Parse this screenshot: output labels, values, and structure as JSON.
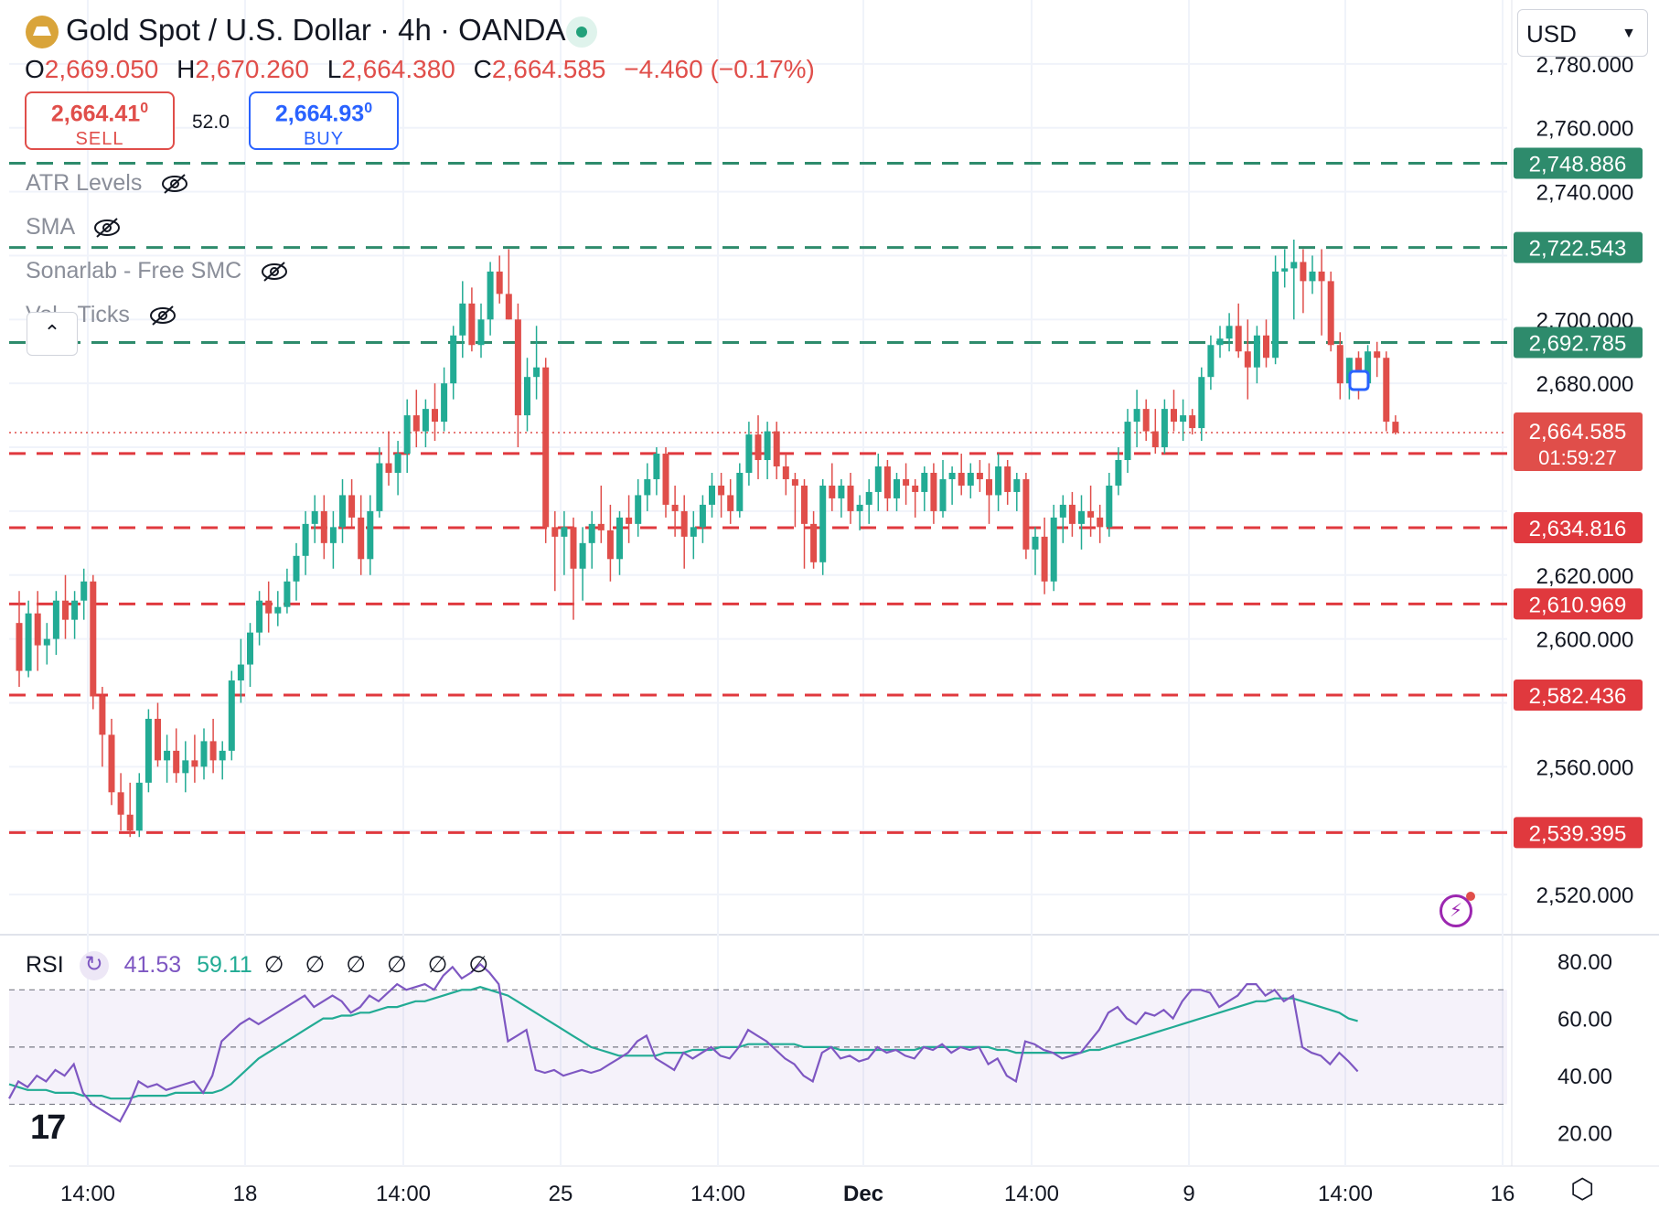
{
  "header": {
    "title": "Gold Spot / U.S. Dollar · 4h · OANDA",
    "ohlc": {
      "o_label": "O",
      "o": "2,669.050",
      "h_label": "H",
      "h": "2,670.260",
      "l_label": "L",
      "l": "2,664.380",
      "c_label": "C",
      "c": "2,664.585",
      "change": "−4.460 (−0.17%)"
    },
    "sell": {
      "price": "2,664.41",
      "pip": "0",
      "label": "SELL"
    },
    "buy": {
      "price": "2,664.93",
      "pip": "0",
      "label": "BUY"
    },
    "spread": "52.0",
    "currency": "USD"
  },
  "indicators": [
    {
      "label": "ATR Levels"
    },
    {
      "label": "SMA"
    },
    {
      "label": "Sonarlab - Free SMC"
    },
    {
      "label": "Vol · Ticks"
    }
  ],
  "rsi": {
    "label": "RSI",
    "value": "41.53",
    "ma_value": "59.11",
    "placeholders": "∅ ∅ ∅ ∅ ∅ ∅"
  },
  "colors": {
    "up": "#22ab94",
    "down": "#e04e4a",
    "green_level": "#2e8b6c",
    "red_level": "#e0393e",
    "rsi": "#7e57c2",
    "rsi_ma": "#22ab94"
  },
  "chart_data": [
    {
      "type": "candlestick",
      "title": "Gold Spot / U.S. Dollar · 4h · OANDA",
      "x_ticks": [
        "14:00",
        "18",
        "14:00",
        "25",
        "14:00",
        "Dec",
        "14:00",
        "9",
        "14:00",
        "16"
      ],
      "y_ticks": [
        "2,520.000",
        "2,560.000",
        "2,600.000",
        "2,620.000",
        "2,680.000",
        "2,700.000",
        "2,740.000",
        "2,760.000",
        "2,780.000"
      ],
      "ylim": [
        2508,
        2800
      ],
      "last_price": "2,664.585",
      "countdown": "01:59:27",
      "levels_green": [
        2748.886,
        2722.543,
        2692.785
      ],
      "levels_green_labels": [
        "2,748.886",
        "2,722.543",
        "2,692.785"
      ],
      "levels_red": [
        2658.034,
        2634.816,
        2610.969,
        2582.436,
        2539.395
      ],
      "levels_red_labels": [
        "2,658.034",
        "2,634.816",
        "2,610.969",
        "2,582.436",
        "2,539.395"
      ],
      "candles": [
        [
          2605,
          2615,
          2585,
          2590
        ],
        [
          2590,
          2612,
          2588,
          2608
        ],
        [
          2608,
          2615,
          2590,
          2598
        ],
        [
          2598,
          2605,
          2592,
          2600
        ],
        [
          2600,
          2615,
          2595,
          2612
        ],
        [
          2612,
          2620,
          2600,
          2606
        ],
        [
          2606,
          2615,
          2600,
          2612
        ],
        [
          2612,
          2622,
          2606,
          2618
        ],
        [
          2618,
          2620,
          2578,
          2582
        ],
        [
          2582,
          2585,
          2560,
          2570
        ],
        [
          2570,
          2575,
          2548,
          2552
        ],
        [
          2552,
          2558,
          2540,
          2545
        ],
        [
          2545,
          2555,
          2538,
          2540
        ],
        [
          2540,
          2558,
          2538,
          2555
        ],
        [
          2555,
          2578,
          2552,
          2575
        ],
        [
          2575,
          2580,
          2560,
          2562
        ],
        [
          2562,
          2570,
          2555,
          2565
        ],
        [
          2565,
          2572,
          2555,
          2558
        ],
        [
          2558,
          2568,
          2552,
          2562
        ],
        [
          2562,
          2570,
          2555,
          2560
        ],
        [
          2560,
          2572,
          2556,
          2568
        ],
        [
          2568,
          2575,
          2558,
          2562
        ],
        [
          2562,
          2568,
          2556,
          2565
        ],
        [
          2565,
          2590,
          2562,
          2587
        ],
        [
          2587,
          2600,
          2580,
          2592
        ],
        [
          2592,
          2605,
          2585,
          2602
        ],
        [
          2602,
          2615,
          2598,
          2612
        ],
        [
          2612,
          2618,
          2602,
          2608
        ],
        [
          2608,
          2615,
          2604,
          2610
        ],
        [
          2610,
          2622,
          2608,
          2618
        ],
        [
          2618,
          2630,
          2612,
          2626
        ],
        [
          2626,
          2640,
          2620,
          2636
        ],
        [
          2636,
          2645,
          2630,
          2640
        ],
        [
          2640,
          2645,
          2625,
          2630
        ],
        [
          2630,
          2640,
          2622,
          2635
        ],
        [
          2635,
          2650,
          2630,
          2645
        ],
        [
          2645,
          2650,
          2635,
          2638
        ],
        [
          2638,
          2645,
          2620,
          2625
        ],
        [
          2625,
          2645,
          2620,
          2640
        ],
        [
          2640,
          2660,
          2638,
          2655
        ],
        [
          2655,
          2665,
          2648,
          2652
        ],
        [
          2652,
          2662,
          2645,
          2658
        ],
        [
          2658,
          2675,
          2652,
          2670
        ],
        [
          2670,
          2678,
          2660,
          2665
        ],
        [
          2665,
          2675,
          2660,
          2672
        ],
        [
          2672,
          2680,
          2662,
          2668
        ],
        [
          2668,
          2685,
          2665,
          2680
        ],
        [
          2680,
          2698,
          2675,
          2695
        ],
        [
          2695,
          2712,
          2688,
          2705
        ],
        [
          2705,
          2710,
          2690,
          2692
        ],
        [
          2692,
          2705,
          2688,
          2700
        ],
        [
          2700,
          2718,
          2695,
          2715
        ],
        [
          2715,
          2720,
          2705,
          2708
        ],
        [
          2708,
          2722,
          2700,
          2700
        ],
        [
          2700,
          2705,
          2660,
          2670
        ],
        [
          2670,
          2688,
          2665,
          2682
        ],
        [
          2682,
          2698,
          2675,
          2685
        ],
        [
          2685,
          2688,
          2630,
          2635
        ],
        [
          2635,
          2640,
          2615,
          2632
        ],
        [
          2632,
          2640,
          2620,
          2635
        ],
        [
          2635,
          2638,
          2606,
          2622
        ],
        [
          2622,
          2635,
          2612,
          2630
        ],
        [
          2630,
          2640,
          2622,
          2636
        ],
        [
          2636,
          2648,
          2630,
          2634
        ],
        [
          2634,
          2642,
          2618,
          2625
        ],
        [
          2625,
          2640,
          2620,
          2638
        ],
        [
          2638,
          2645,
          2630,
          2636
        ],
        [
          2636,
          2650,
          2632,
          2645
        ],
        [
          2645,
          2655,
          2640,
          2650
        ],
        [
          2650,
          2660,
          2645,
          2658
        ],
        [
          2658,
          2660,
          2638,
          2642
        ],
        [
          2642,
          2648,
          2632,
          2640
        ],
        [
          2640,
          2645,
          2622,
          2632
        ],
        [
          2632,
          2640,
          2625,
          2635
        ],
        [
          2635,
          2645,
          2630,
          2642
        ],
        [
          2642,
          2652,
          2638,
          2648
        ],
        [
          2648,
          2652,
          2638,
          2645
        ],
        [
          2645,
          2650,
          2636,
          2640
        ],
        [
          2640,
          2655,
          2638,
          2652
        ],
        [
          2652,
          2668,
          2648,
          2664
        ],
        [
          2664,
          2670,
          2650,
          2656
        ],
        [
          2656,
          2668,
          2650,
          2665
        ],
        [
          2665,
          2668,
          2650,
          2654
        ],
        [
          2654,
          2658,
          2645,
          2650
        ],
        [
          2650,
          2652,
          2635,
          2648
        ],
        [
          2648,
          2650,
          2622,
          2636
        ],
        [
          2636,
          2640,
          2622,
          2624
        ],
        [
          2624,
          2650,
          2620,
          2648
        ],
        [
          2648,
          2655,
          2640,
          2644
        ],
        [
          2644,
          2650,
          2638,
          2648
        ],
        [
          2648,
          2652,
          2636,
          2640
        ],
        [
          2640,
          2645,
          2634,
          2642
        ],
        [
          2642,
          2650,
          2636,
          2646
        ],
        [
          2646,
          2658,
          2640,
          2654
        ],
        [
          2654,
          2656,
          2640,
          2644
        ],
        [
          2644,
          2652,
          2640,
          2650
        ],
        [
          2650,
          2655,
          2642,
          2648
        ],
        [
          2648,
          2650,
          2638,
          2646
        ],
        [
          2646,
          2654,
          2640,
          2652
        ],
        [
          2652,
          2655,
          2636,
          2640
        ],
        [
          2640,
          2656,
          2638,
          2650
        ],
        [
          2650,
          2654,
          2642,
          2652
        ],
        [
          2652,
          2658,
          2645,
          2648
        ],
        [
          2648,
          2655,
          2644,
          2652
        ],
        [
          2652,
          2656,
          2646,
          2650
        ],
        [
          2650,
          2655,
          2636,
          2645
        ],
        [
          2645,
          2658,
          2640,
          2654
        ],
        [
          2654,
          2656,
          2642,
          2646
        ],
        [
          2646,
          2652,
          2640,
          2650
        ],
        [
          2650,
          2652,
          2625,
          2628
        ],
        [
          2628,
          2635,
          2620,
          2632
        ],
        [
          2632,
          2638,
          2614,
          2618
        ],
        [
          2618,
          2642,
          2615,
          2638
        ],
        [
          2638,
          2645,
          2630,
          2642
        ],
        [
          2642,
          2646,
          2632,
          2636
        ],
        [
          2636,
          2645,
          2628,
          2640
        ],
        [
          2640,
          2648,
          2632,
          2638
        ],
        [
          2638,
          2642,
          2630,
          2635
        ],
        [
          2635,
          2652,
          2632,
          2648
        ],
        [
          2648,
          2660,
          2645,
          2656
        ],
        [
          2656,
          2672,
          2652,
          2668
        ],
        [
          2668,
          2678,
          2660,
          2672
        ],
        [
          2672,
          2675,
          2662,
          2665
        ],
        [
          2665,
          2672,
          2658,
          2660
        ],
        [
          2660,
          2675,
          2658,
          2672
        ],
        [
          2672,
          2678,
          2665,
          2668
        ],
        [
          2668,
          2675,
          2662,
          2670
        ],
        [
          2670,
          2672,
          2664,
          2666
        ],
        [
          2666,
          2685,
          2662,
          2682
        ],
        [
          2682,
          2695,
          2678,
          2692
        ],
        [
          2692,
          2698,
          2688,
          2694
        ],
        [
          2694,
          2702,
          2690,
          2698
        ],
        [
          2698,
          2705,
          2688,
          2690
        ],
        [
          2690,
          2700,
          2675,
          2685
        ],
        [
          2685,
          2698,
          2680,
          2695
        ],
        [
          2695,
          2700,
          2685,
          2688
        ],
        [
          2688,
          2720,
          2686,
          2715
        ],
        [
          2715,
          2722,
          2710,
          2716
        ],
        [
          2716,
          2725,
          2700,
          2718
        ],
        [
          2718,
          2722,
          2702,
          2712
        ],
        [
          2712,
          2720,
          2708,
          2715
        ],
        [
          2715,
          2722,
          2695,
          2712
        ],
        [
          2712,
          2715,
          2690,
          2692
        ],
        [
          2692,
          2696,
          2675,
          2680
        ],
        [
          2680,
          2688,
          2675,
          2688
        ],
        [
          2688,
          2690,
          2675,
          2680
        ],
        [
          2680,
          2692,
          2678,
          2690
        ],
        [
          2690,
          2693,
          2682,
          2688
        ],
        [
          2688,
          2690,
          2665,
          2668
        ],
        [
          2668,
          2670,
          2664,
          2664.6
        ]
      ],
      "rsi": {
        "ylim": [
          10,
          88
        ],
        "y_ticks": [
          "20.00",
          "40.00",
          "60.00",
          "80.00"
        ],
        "bands": [
          30,
          50,
          70
        ],
        "values": [
          32,
          38,
          36,
          40,
          38,
          42,
          40,
          44,
          34,
          30,
          28,
          26,
          24,
          30,
          38,
          36,
          37,
          35,
          36,
          37,
          38,
          34,
          40,
          52,
          55,
          58,
          60,
          58,
          60,
          62,
          64,
          66,
          68,
          64,
          66,
          68,
          66,
          62,
          64,
          68,
          66,
          69,
          72,
          70,
          71,
          72,
          70,
          75,
          78,
          74,
          76,
          79,
          76,
          72,
          52,
          54,
          56,
          42,
          41,
          42,
          40,
          41,
          42,
          41,
          42,
          44,
          46,
          48,
          52,
          54,
          46,
          44,
          42,
          48,
          46,
          48,
          50,
          47,
          46,
          50,
          56,
          54,
          52,
          49,
          46,
          44,
          40,
          38,
          48,
          50,
          46,
          47,
          45,
          46,
          50,
          48,
          49,
          47,
          46,
          50,
          49,
          51,
          48,
          50,
          49,
          50,
          44,
          46,
          40,
          38,
          52,
          51,
          49,
          48,
          46,
          47,
          48,
          52,
          56,
          62,
          64,
          60,
          58,
          62,
          61,
          63,
          60,
          66,
          70,
          70,
          69,
          64,
          66,
          68,
          72,
          72,
          68,
          70,
          66,
          68,
          50,
          48,
          47,
          44,
          48,
          45,
          41.5
        ],
        "ma_values": [
          37,
          36,
          35,
          35,
          35,
          34,
          34,
          34,
          33,
          33,
          33,
          32,
          32,
          32,
          33,
          33,
          33,
          33,
          34,
          34,
          34,
          34,
          34,
          35,
          37,
          40,
          43,
          46,
          48,
          50,
          52,
          54,
          56,
          58,
          60,
          60,
          61,
          61,
          62,
          62,
          63,
          64,
          64,
          65,
          66,
          66,
          67,
          68,
          69,
          70,
          70,
          71,
          70,
          69,
          68,
          66,
          64,
          62,
          60,
          58,
          56,
          54,
          52,
          50,
          49,
          48,
          47,
          47,
          47,
          47,
          47,
          48,
          48,
          48,
          49,
          49,
          49,
          50,
          50,
          50,
          51,
          51,
          51,
          51,
          51,
          51,
          50,
          50,
          50,
          50,
          49,
          49,
          49,
          49,
          49,
          49,
          49,
          49,
          49,
          50,
          50,
          50,
          50,
          50,
          50,
          50,
          50,
          49,
          49,
          48,
          48,
          48,
          48,
          48,
          48,
          48,
          48,
          49,
          49,
          50,
          51,
          52,
          53,
          54,
          55,
          56,
          57,
          58,
          59,
          60,
          61,
          62,
          63,
          64,
          65,
          66,
          66,
          67,
          67,
          67,
          66,
          65,
          64,
          63,
          62,
          60,
          59.1
        ]
      }
    }
  ]
}
